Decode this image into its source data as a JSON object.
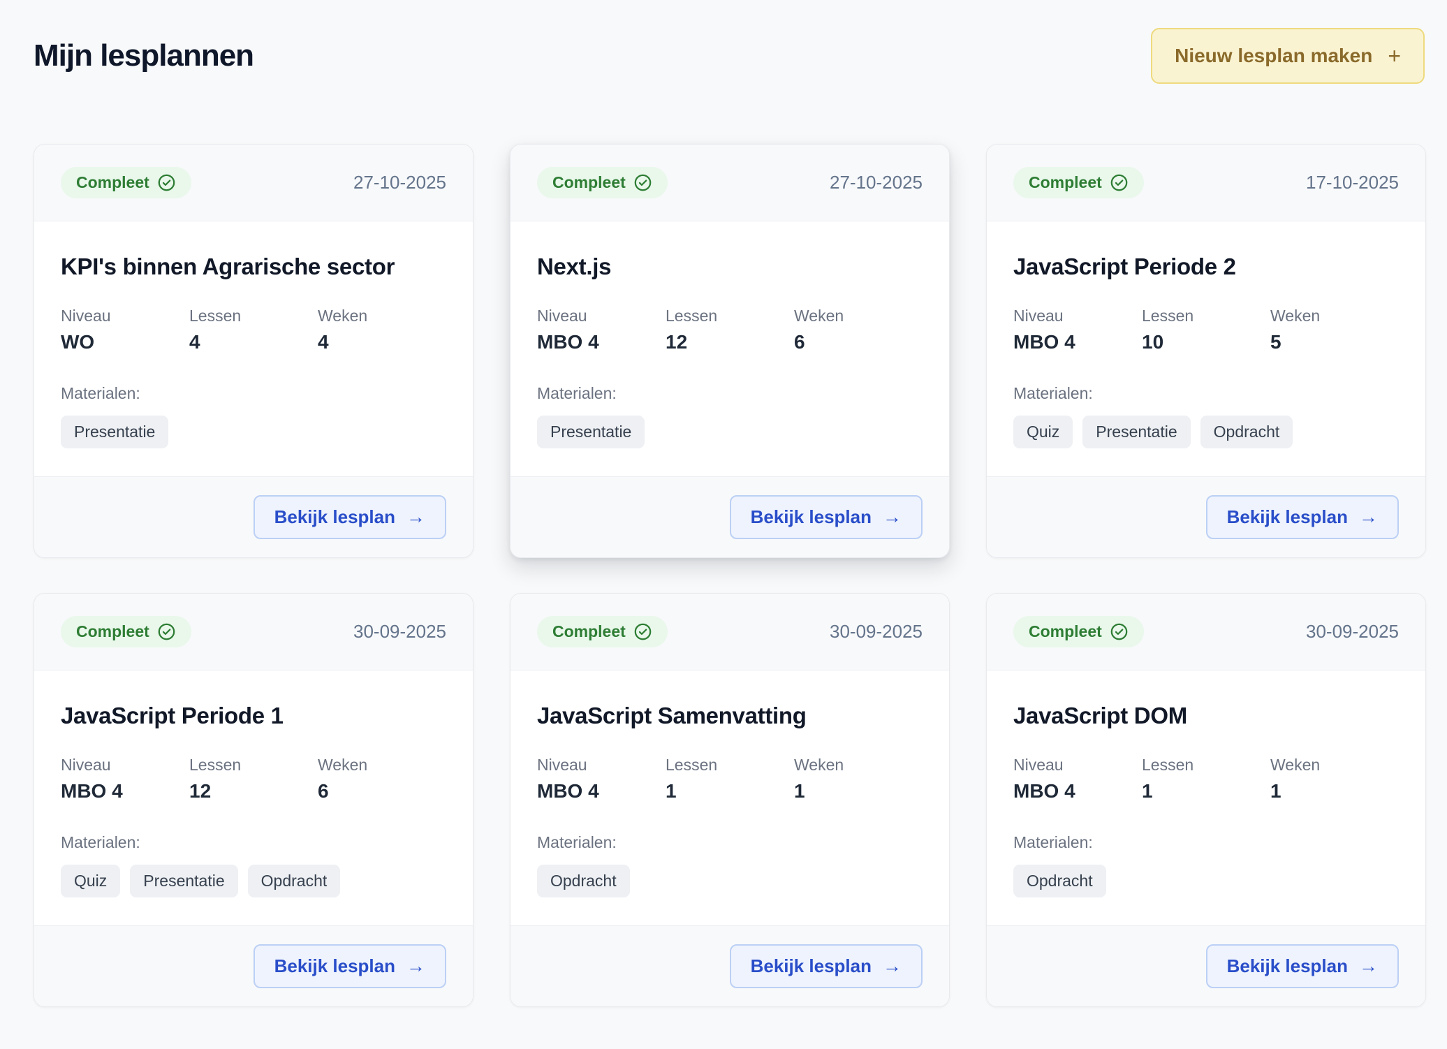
{
  "header": {
    "title": "Mijn lesplannen",
    "new_button_label": "Nieuw lesplan maken",
    "new_button_icon": "+"
  },
  "labels": {
    "status": "Compleet",
    "niveau_label": "Niveau",
    "lessen_label": "Lessen",
    "weken_label": "Weken",
    "materials_label": "Materialen:",
    "action": "Bekijk lesplan",
    "arrow": "→"
  },
  "colors": {
    "page_bg": "#f8f9fa",
    "badge_bg": "#e9f8eb",
    "badge_text": "#2e7d34",
    "new_button_bg": "#faf3d2",
    "new_button_border": "#eeda7e",
    "new_button_text": "#8a6a2b",
    "view_button_bg": "#eef3fd",
    "view_button_border": "#bcd0f5",
    "view_button_text": "#2a4ec9",
    "chip_bg": "#eef0f3"
  },
  "cards": [
    {
      "title": "KPI's binnen Agrarische sector",
      "date": "27-10-2025",
      "niveau": "WO",
      "lessen": "4",
      "weken": "4",
      "materials": [
        "Presentatie"
      ],
      "elevated": false
    },
    {
      "title": "Next.js",
      "date": "27-10-2025",
      "niveau": "MBO 4",
      "lessen": "12",
      "weken": "6",
      "materials": [
        "Presentatie"
      ],
      "elevated": true
    },
    {
      "title": "JavaScript Periode 2",
      "date": "17-10-2025",
      "niveau": "MBO 4",
      "lessen": "10",
      "weken": "5",
      "materials": [
        "Quiz",
        "Presentatie",
        "Opdracht"
      ],
      "elevated": false
    },
    {
      "title": "JavaScript Periode 1",
      "date": "30-09-2025",
      "niveau": "MBO 4",
      "lessen": "12",
      "weken": "6",
      "materials": [
        "Quiz",
        "Presentatie",
        "Opdracht"
      ],
      "elevated": false
    },
    {
      "title": "JavaScript Samenvatting",
      "date": "30-09-2025",
      "niveau": "MBO 4",
      "lessen": "1",
      "weken": "1",
      "materials": [
        "Opdracht"
      ],
      "elevated": false
    },
    {
      "title": "JavaScript DOM",
      "date": "30-09-2025",
      "niveau": "MBO 4",
      "lessen": "1",
      "weken": "1",
      "materials": [
        "Opdracht"
      ],
      "elevated": false
    }
  ]
}
